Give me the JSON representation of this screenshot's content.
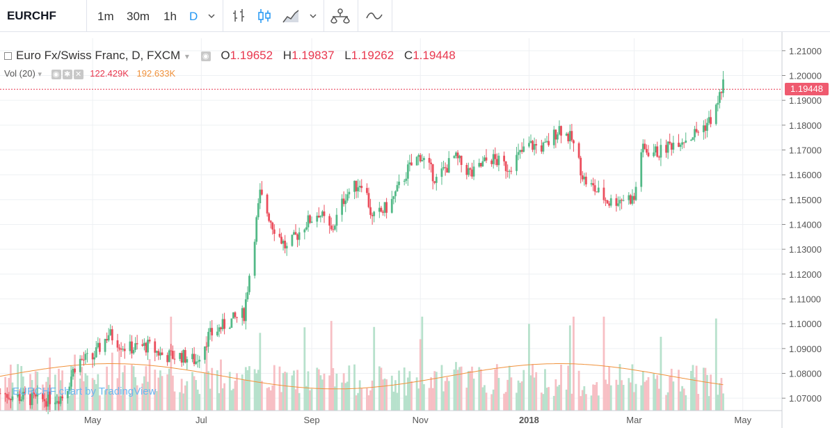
{
  "toolbar": {
    "symbol": "EURCHF",
    "intervals": [
      "1m",
      "30m",
      "1h",
      "D"
    ],
    "active_interval": "D",
    "icons": [
      "chevron-down-icon",
      "bars-icon",
      "candles-icon",
      "area-chart-icon",
      "chevron-down-icon",
      "compare-icon",
      "indicators-icon"
    ]
  },
  "legend": {
    "title": "Euro Fx/Swiss Franc, D, FXCM",
    "open_label": "O",
    "open": "1.19652",
    "high_label": "H",
    "high": "1.19837",
    "low_label": "L",
    "low": "1.19262",
    "close_label": "C",
    "close": "1.19448",
    "vol_label": "Vol (20)",
    "vol_value": "122.429K",
    "vol_ma": "192.633K"
  },
  "watermark": "EURCHF chart by TradingView",
  "last_price_label": "1.19448",
  "colors": {
    "up": "#53b987",
    "down": "#eb4d5c",
    "up_vol": "#b7e1cc",
    "down_vol": "#f7bfc4",
    "vol_ma": "#f0913a",
    "price_line": "#e8374e",
    "grid": "#eef0f3",
    "axis_text": "#555555",
    "watermark": "#6ab7f0",
    "active_interval": "#2196f3"
  },
  "chart_data": {
    "type": "candlestick",
    "title": "Euro Fx/Swiss Franc, D, FXCM",
    "ylim": [
      1.065,
      1.215
    ],
    "y_ticks": [
      "1.07000",
      "1.08000",
      "1.09000",
      "1.10000",
      "1.11000",
      "1.12000",
      "1.13000",
      "1.14000",
      "1.15000",
      "1.16000",
      "1.17000",
      "1.18000",
      "1.19000",
      "1.20000",
      "1.21000"
    ],
    "x_ticks": [
      {
        "label": "May",
        "date": "2017-05-01"
      },
      {
        "label": "Jul",
        "date": "2017-07-01"
      },
      {
        "label": "Sep",
        "date": "2017-09-01"
      },
      {
        "label": "Nov",
        "date": "2017-11-01"
      },
      {
        "label": "2018",
        "date": "2018-01-01"
      },
      {
        "label": "Mar",
        "date": "2018-03-01"
      },
      {
        "label": "May",
        "date": "2018-05-01"
      }
    ],
    "x_range": [
      "2017-03-10",
      "2018-05-23"
    ],
    "last_close": 1.19448,
    "close_path": [
      {
        "date": "2017-03-10",
        "close": 1.072
      },
      {
        "date": "2017-04-01",
        "close": 1.069
      },
      {
        "date": "2017-04-15",
        "close": 1.071
      },
      {
        "date": "2017-04-22",
        "close": 1.085
      },
      {
        "date": "2017-05-01",
        "close": 1.086
      },
      {
        "date": "2017-05-10",
        "close": 1.096
      },
      {
        "date": "2017-05-20",
        "close": 1.09
      },
      {
        "date": "2017-06-01",
        "close": 1.091
      },
      {
        "date": "2017-06-10",
        "close": 1.087
      },
      {
        "date": "2017-06-20",
        "close": 1.087
      },
      {
        "date": "2017-06-28",
        "close": 1.085
      },
      {
        "date": "2017-07-05",
        "close": 1.095
      },
      {
        "date": "2017-07-15",
        "close": 1.1
      },
      {
        "date": "2017-07-25",
        "close": 1.104
      },
      {
        "date": "2017-08-03",
        "close": 1.152
      },
      {
        "date": "2017-08-10",
        "close": 1.14
      },
      {
        "date": "2017-08-18",
        "close": 1.13
      },
      {
        "date": "2017-08-28",
        "close": 1.14
      },
      {
        "date": "2017-09-05",
        "close": 1.145
      },
      {
        "date": "2017-09-12",
        "close": 1.137
      },
      {
        "date": "2017-09-20",
        "close": 1.152
      },
      {
        "date": "2017-09-30",
        "close": 1.158
      },
      {
        "date": "2017-10-05",
        "close": 1.142
      },
      {
        "date": "2017-10-15",
        "close": 1.148
      },
      {
        "date": "2017-10-25",
        "close": 1.162
      },
      {
        "date": "2017-11-01",
        "close": 1.168
      },
      {
        "date": "2017-11-10",
        "close": 1.158
      },
      {
        "date": "2017-11-20",
        "close": 1.167
      },
      {
        "date": "2017-11-30",
        "close": 1.16
      },
      {
        "date": "2017-12-10",
        "close": 1.167
      },
      {
        "date": "2017-12-20",
        "close": 1.163
      },
      {
        "date": "2018-01-01",
        "close": 1.172
      },
      {
        "date": "2018-01-10",
        "close": 1.171
      },
      {
        "date": "2018-01-18",
        "close": 1.179
      },
      {
        "date": "2018-01-25",
        "close": 1.174
      },
      {
        "date": "2018-02-01",
        "close": 1.158
      },
      {
        "date": "2018-02-10",
        "close": 1.152
      },
      {
        "date": "2018-02-15",
        "close": 1.149
      },
      {
        "date": "2018-02-25",
        "close": 1.151
      },
      {
        "date": "2018-03-01",
        "close": 1.15
      },
      {
        "date": "2018-03-05",
        "close": 1.17
      },
      {
        "date": "2018-03-15",
        "close": 1.169
      },
      {
        "date": "2018-03-25",
        "close": 1.174
      },
      {
        "date": "2018-04-01",
        "close": 1.175
      },
      {
        "date": "2018-04-10",
        "close": 1.18
      },
      {
        "date": "2018-04-15",
        "close": 1.184
      },
      {
        "date": "2018-04-20",
        "close": 1.197
      },
      {
        "date": "2018-04-22",
        "close": 1.19448
      }
    ],
    "volume_ma_level": 192633
  }
}
